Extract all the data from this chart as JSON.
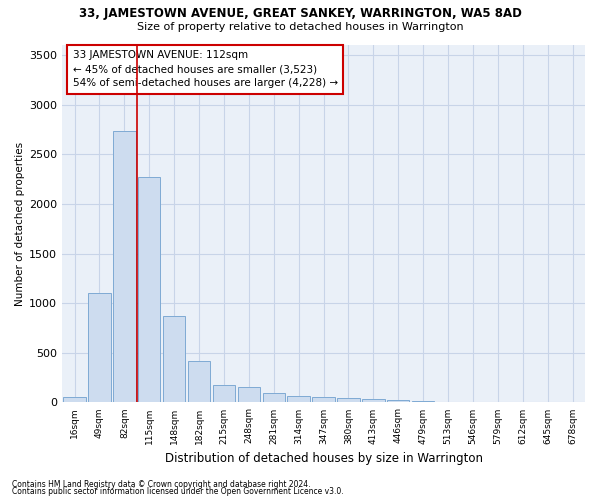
{
  "title": "33, JAMESTOWN AVENUE, GREAT SANKEY, WARRINGTON, WA5 8AD",
  "subtitle": "Size of property relative to detached houses in Warrington",
  "xlabel": "Distribution of detached houses by size in Warrington",
  "ylabel": "Number of detached properties",
  "bar_labels": [
    "16sqm",
    "49sqm",
    "82sqm",
    "115sqm",
    "148sqm",
    "182sqm",
    "215sqm",
    "248sqm",
    "281sqm",
    "314sqm",
    "347sqm",
    "380sqm",
    "413sqm",
    "446sqm",
    "479sqm",
    "513sqm",
    "546sqm",
    "579sqm",
    "612sqm",
    "645sqm",
    "678sqm"
  ],
  "bar_values": [
    55,
    1100,
    2730,
    2270,
    870,
    415,
    180,
    160,
    95,
    65,
    50,
    45,
    30,
    28,
    18,
    5,
    2,
    1,
    0,
    0,
    0
  ],
  "bar_color": "#cddcef",
  "bar_edgecolor": "#7faad4",
  "grid_color": "#c8d4e8",
  "background_color": "#eaf0f8",
  "vline_color": "#cc0000",
  "annotation_text": "33 JAMESTOWN AVENUE: 112sqm\n← 45% of detached houses are smaller (3,523)\n54% of semi-detached houses are larger (4,228) →",
  "annotation_box_color": "#cc0000",
  "ylim": [
    0,
    3600
  ],
  "yticks": [
    0,
    500,
    1000,
    1500,
    2000,
    2500,
    3000,
    3500
  ],
  "footer_line1": "Contains HM Land Registry data © Crown copyright and database right 2024.",
  "footer_line2": "Contains public sector information licensed under the Open Government Licence v3.0."
}
